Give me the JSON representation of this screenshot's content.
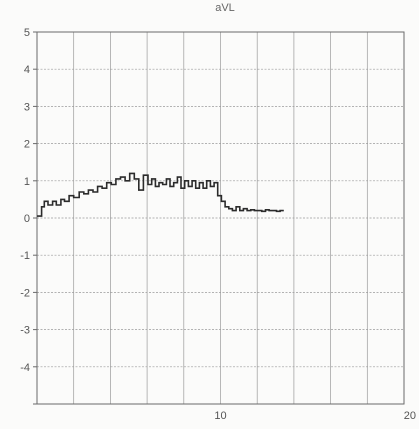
{
  "chart_data": {
    "type": "line",
    "title": "aVL",
    "xlabel": "",
    "ylabel": "",
    "xlim": [
      0,
      20
    ],
    "ylim": [
      -5,
      5
    ],
    "grid": true,
    "x_tick_labels": [
      {
        "value": 10,
        "label": "10"
      },
      {
        "value": 20,
        "label": "20"
      }
    ],
    "y_tick_labels": [
      {
        "value": 5,
        "label": "5"
      },
      {
        "value": 4,
        "label": "4"
      },
      {
        "value": 3,
        "label": "3"
      },
      {
        "value": 2,
        "label": "2"
      },
      {
        "value": 1,
        "label": "1"
      },
      {
        "value": 0,
        "label": "0"
      },
      {
        "value": -1,
        "label": "-1"
      },
      {
        "value": -2,
        "label": "-2"
      },
      {
        "value": -3,
        "label": "-3"
      },
      {
        "value": -4,
        "label": "-4"
      }
    ],
    "series": [
      {
        "color": "#2b2b2b",
        "x": [
          0.0,
          0.25,
          0.4,
          0.6,
          0.85,
          1.05,
          1.3,
          1.5,
          1.75,
          2.0,
          2.3,
          2.55,
          2.8,
          3.05,
          3.3,
          3.55,
          3.8,
          4.05,
          4.3,
          4.55,
          4.8,
          5.05,
          5.3,
          5.55,
          5.8,
          6.05,
          6.25,
          6.45,
          6.65,
          6.85,
          7.05,
          7.25,
          7.45,
          7.65,
          7.85,
          8.05,
          8.25,
          8.45,
          8.65,
          8.85,
          9.05,
          9.25,
          9.45,
          9.65,
          9.85,
          10.05,
          10.25,
          10.45,
          10.65,
          10.85,
          11.05,
          11.25,
          11.45,
          11.65,
          11.85,
          12.05,
          12.25,
          12.45,
          12.65,
          12.85,
          13.05,
          13.25,
          13.45
        ],
        "y": [
          0.05,
          0.3,
          0.45,
          0.35,
          0.45,
          0.35,
          0.5,
          0.45,
          0.6,
          0.55,
          0.7,
          0.65,
          0.75,
          0.7,
          0.85,
          0.8,
          0.95,
          0.9,
          1.05,
          1.1,
          1.0,
          1.2,
          1.05,
          0.75,
          1.15,
          0.9,
          1.05,
          0.85,
          0.95,
          0.9,
          1.05,
          0.85,
          0.95,
          1.1,
          0.8,
          1.0,
          0.85,
          1.0,
          0.8,
          0.95,
          0.8,
          1.0,
          0.85,
          0.95,
          0.6,
          0.45,
          0.3,
          0.25,
          0.2,
          0.3,
          0.2,
          0.25,
          0.2,
          0.22,
          0.2,
          0.2,
          0.18,
          0.22,
          0.2,
          0.2,
          0.18,
          0.2,
          0.2
        ]
      }
    ]
  }
}
